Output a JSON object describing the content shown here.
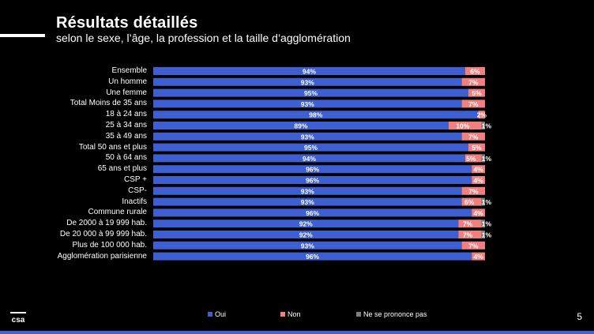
{
  "header": {
    "title": "Résultats détaillés",
    "subtitle": "selon le sexe, l’âge, la profession et la taille d’agglomération"
  },
  "page_number": "5",
  "logo_text": "csa",
  "colors": {
    "oui": "#3d5fd1",
    "non": "#f08080",
    "nsp": "#7f7f7f",
    "accent_line": "#3d63d6"
  },
  "chart_data": {
    "type": "bar",
    "stacked": true,
    "orientation": "horizontal",
    "title": "Résultats détaillés",
    "subtitle": "selon le sexe, l’âge, la profession et la taille d’agglomération",
    "categories": [
      "Ensemble",
      "Un homme",
      "Une femme",
      "Total Moins de 35 ans",
      "18 à 24 ans",
      "25 à 34 ans",
      "35 à 49 ans",
      "Total 50 ans et plus",
      "50 à 64 ans",
      "65 ans et plus",
      "CSP +",
      "CSP-",
      "Inactifs",
      "Commune rurale",
      "De 2000 à 19 999 hab.",
      "De 20 000 à 99 999 hab.",
      "Plus de 100 000 hab.",
      "Agglomération parisienne"
    ],
    "groups": [
      [
        0
      ],
      [
        1,
        2
      ],
      [
        3,
        4,
        5,
        6,
        7,
        8,
        9
      ],
      [
        10,
        11,
        12
      ],
      [
        13,
        14,
        15,
        16,
        17
      ]
    ],
    "series": [
      {
        "name": "Oui",
        "values": [
          94,
          93,
          95,
          93,
          98,
          89,
          93,
          95,
          94,
          96,
          96,
          93,
          93,
          96,
          92,
          92,
          93,
          96
        ]
      },
      {
        "name": "Non",
        "values": [
          6,
          7,
          5,
          7,
          2,
          10,
          7,
          5,
          5,
          4,
          4,
          7,
          6,
          4,
          7,
          7,
          7,
          4
        ]
      },
      {
        "name": "Ne se prononce pas",
        "values": [
          0,
          0,
          0,
          0,
          0,
          1,
          0,
          0,
          1,
          0,
          0,
          0,
          1,
          0,
          1,
          1,
          0,
          0
        ]
      }
    ],
    "labels": [
      [
        "94%",
        "6%",
        ""
      ],
      [
        "93%",
        "7%",
        ""
      ],
      [
        "95%",
        "5%",
        ""
      ],
      [
        "93%",
        "7%",
        ""
      ],
      [
        "98%",
        "2%",
        ""
      ],
      [
        "89%",
        "10%",
        "1%"
      ],
      [
        "93%",
        "7%",
        ""
      ],
      [
        "95%",
        "5%",
        ""
      ],
      [
        "94%",
        "5%",
        "1%"
      ],
      [
        "96%",
        "4%",
        ""
      ],
      [
        "96%",
        "4%",
        ""
      ],
      [
        "93%",
        "7%",
        ""
      ],
      [
        "93%",
        "6%",
        "1%"
      ],
      [
        "96%",
        "4%",
        ""
      ],
      [
        "92%",
        "7%",
        "1%"
      ],
      [
        "92%",
        "7%",
        "1%"
      ],
      [
        "93%",
        "7%",
        ""
      ],
      [
        "96%",
        "4%",
        ""
      ]
    ],
    "xlim": [
      0,
      100
    ],
    "legend": [
      "Oui",
      "Non",
      "Ne se prononce pas"
    ],
    "legend_position": "bottom"
  }
}
